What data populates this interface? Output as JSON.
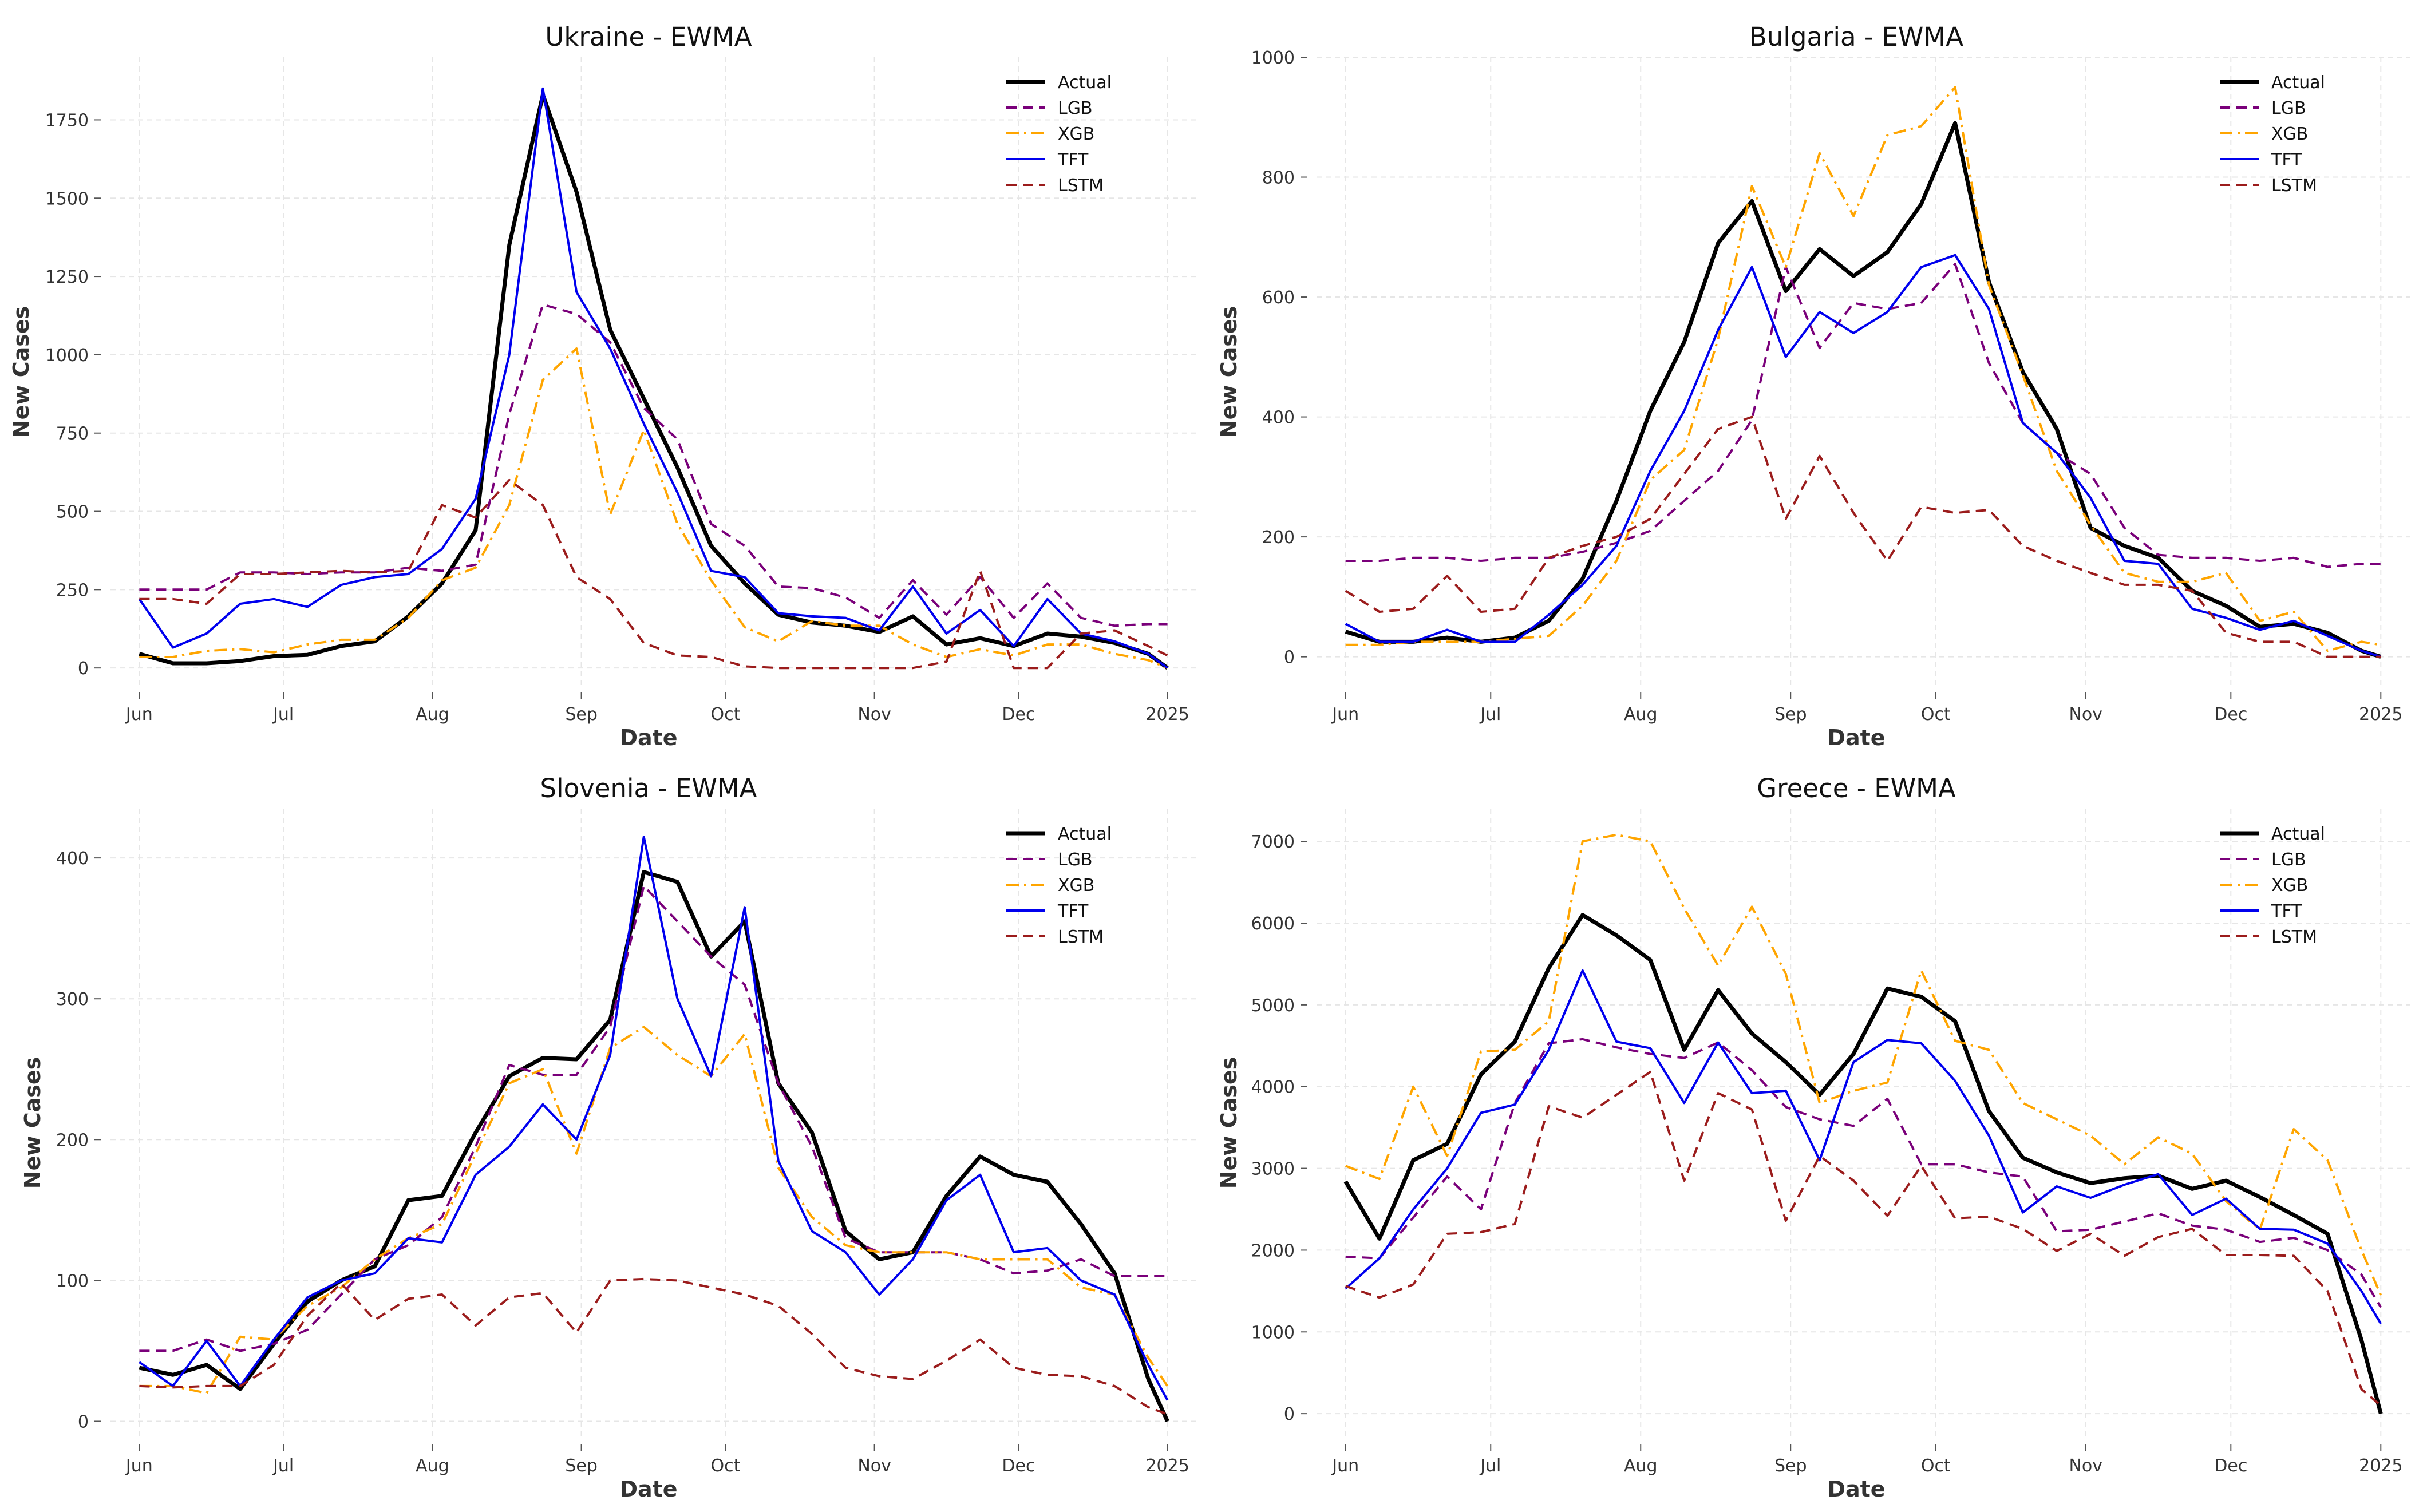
{
  "chart_data": [
    {
      "type": "line",
      "title": "Ukraine - EWMA",
      "xlabel": "Date",
      "ylabel": "New Cases",
      "ylim": [
        -60,
        1950
      ],
      "yticks": [
        0,
        250,
        500,
        750,
        1000,
        1250,
        1500,
        1750
      ],
      "x_tick_labels": [
        "Jun",
        "Jul",
        "Aug",
        "Sep",
        "Oct",
        "Nov",
        "Dec",
        "2025"
      ],
      "x_tick_days": [
        0,
        30,
        61,
        92,
        122,
        153,
        183,
        214
      ],
      "x_days": [
        0,
        7,
        14,
        21,
        28,
        35,
        42,
        49,
        56,
        63,
        70,
        77,
        84,
        91,
        98,
        105,
        112,
        119,
        126,
        133,
        140,
        147,
        154,
        161,
        168,
        175,
        182,
        189,
        196,
        203,
        210,
        214
      ],
      "grid": true,
      "legend_position": "top-right",
      "series": [
        {
          "name": "Actual",
          "color": "#000000",
          "dash": "solid",
          "values": [
            45,
            15,
            15,
            22,
            38,
            42,
            70,
            85,
            165,
            270,
            440,
            1350,
            1830,
            1520,
            1080,
            860,
            640,
            390,
            270,
            170,
            145,
            135,
            115,
            165,
            75,
            95,
            70,
            110,
            100,
            80,
            45,
            0
          ]
        },
        {
          "name": "LGB",
          "color": "#7a007a",
          "dash": "dashed",
          "values": [
            250,
            250,
            250,
            305,
            305,
            300,
            305,
            305,
            320,
            310,
            330,
            810,
            1160,
            1130,
            1040,
            830,
            730,
            460,
            390,
            260,
            255,
            225,
            160,
            280,
            170,
            290,
            160,
            270,
            160,
            135,
            140,
            140
          ]
        },
        {
          "name": "XGB",
          "color": "#ffa500",
          "dash": "dashdot",
          "values": [
            35,
            35,
            55,
            60,
            50,
            75,
            90,
            90,
            160,
            280,
            320,
            520,
            920,
            1020,
            490,
            760,
            460,
            280,
            130,
            85,
            150,
            135,
            135,
            75,
            35,
            60,
            40,
            75,
            75,
            45,
            25,
            0
          ]
        },
        {
          "name": "TFT",
          "color": "#0000ee",
          "dash": "solid",
          "values": [
            220,
            65,
            110,
            205,
            220,
            195,
            265,
            290,
            300,
            380,
            540,
            1000,
            1850,
            1200,
            1020,
            780,
            560,
            310,
            290,
            175,
            165,
            160,
            120,
            260,
            110,
            185,
            70,
            220,
            110,
            85,
            45,
            0
          ]
        },
        {
          "name": "LSTM",
          "color": "#9b1c1c",
          "dash": "dashed",
          "values": [
            220,
            220,
            205,
            300,
            300,
            305,
            310,
            305,
            310,
            520,
            480,
            600,
            520,
            290,
            220,
            80,
            40,
            35,
            5,
            0,
            0,
            0,
            0,
            0,
            20,
            310,
            0,
            0,
            110,
            120,
            70,
            40
          ]
        }
      ]
    },
    {
      "type": "line",
      "title": "Bulgaria - EWMA",
      "xlabel": "Date",
      "ylabel": "New Cases",
      "ylim": [
        -50,
        1000
      ],
      "yticks": [
        0,
        200,
        400,
        600,
        800,
        1000
      ],
      "x_tick_labels": [
        "Jun",
        "Jul",
        "Aug",
        "Sep",
        "Oct",
        "Nov",
        "Dec",
        "2025"
      ],
      "x_tick_days": [
        0,
        30,
        61,
        92,
        122,
        153,
        183,
        214
      ],
      "x_days": [
        0,
        7,
        14,
        21,
        28,
        35,
        42,
        49,
        56,
        63,
        70,
        77,
        84,
        91,
        98,
        105,
        112,
        119,
        126,
        133,
        140,
        147,
        154,
        161,
        168,
        175,
        182,
        189,
        196,
        203,
        210,
        214
      ],
      "grid": true,
      "legend_position": "top-right",
      "series": [
        {
          "name": "Actual",
          "color": "#000000",
          "dash": "solid",
          "values": [
            42,
            25,
            25,
            32,
            25,
            32,
            60,
            130,
            260,
            410,
            525,
            690,
            760,
            610,
            680,
            635,
            675,
            755,
            890,
            625,
            475,
            380,
            215,
            185,
            165,
            110,
            85,
            50,
            55,
            40,
            10,
            0
          ]
        },
        {
          "name": "LGB",
          "color": "#7a007a",
          "dash": "dashed",
          "values": [
            160,
            160,
            165,
            165,
            160,
            165,
            165,
            175,
            190,
            210,
            260,
            310,
            395,
            650,
            515,
            590,
            580,
            590,
            655,
            490,
            390,
            340,
            305,
            215,
            170,
            165,
            165,
            160,
            165,
            150,
            155,
            155
          ]
        },
        {
          "name": "XGB",
          "color": "#ffa500",
          "dash": "dashdot",
          "values": [
            20,
            20,
            25,
            25,
            25,
            30,
            35,
            85,
            160,
            295,
            345,
            530,
            785,
            650,
            840,
            735,
            870,
            885,
            950,
            620,
            470,
            310,
            220,
            140,
            125,
            125,
            140,
            60,
            75,
            10,
            25,
            20
          ]
        },
        {
          "name": "TFT",
          "color": "#0000ee",
          "dash": "solid",
          "values": [
            55,
            25,
            25,
            45,
            25,
            25,
            70,
            120,
            185,
            310,
            410,
            545,
            650,
            500,
            575,
            540,
            575,
            650,
            670,
            580,
            390,
            340,
            265,
            160,
            155,
            80,
            65,
            45,
            60,
            35,
            10,
            0
          ]
        },
        {
          "name": "LSTM",
          "color": "#9b1c1c",
          "dash": "dashed",
          "values": [
            110,
            75,
            80,
            135,
            75,
            80,
            165,
            185,
            200,
            230,
            305,
            380,
            400,
            230,
            335,
            240,
            160,
            250,
            240,
            245,
            185,
            160,
            140,
            120,
            120,
            110,
            40,
            25,
            25,
            0,
            0,
            0
          ]
        }
      ]
    },
    {
      "type": "line",
      "title": "Slovenia - EWMA",
      "xlabel": "Date",
      "ylabel": "New Cases",
      "ylim": [
        -12,
        435
      ],
      "yticks": [
        0,
        100,
        200,
        300,
        400
      ],
      "x_tick_labels": [
        "Jun",
        "Jul",
        "Aug",
        "Sep",
        "Oct",
        "Nov",
        "Dec",
        "2025"
      ],
      "x_tick_days": [
        0,
        30,
        61,
        92,
        122,
        153,
        183,
        214
      ],
      "x_days": [
        0,
        7,
        14,
        21,
        28,
        35,
        42,
        49,
        56,
        63,
        70,
        77,
        84,
        91,
        98,
        105,
        112,
        119,
        126,
        133,
        140,
        147,
        154,
        161,
        168,
        175,
        182,
        189,
        196,
        203,
        210,
        214
      ],
      "grid": true,
      "legend_position": "top-right",
      "series": [
        {
          "name": "Actual",
          "color": "#000000",
          "dash": "solid",
          "values": [
            38,
            33,
            40,
            23,
            55,
            85,
            100,
            110,
            157,
            160,
            205,
            245,
            258,
            257,
            285,
            390,
            383,
            330,
            355,
            240,
            205,
            135,
            115,
            120,
            160,
            188,
            175,
            170,
            140,
            105,
            30,
            0
          ]
        },
        {
          "name": "LGB",
          "color": "#7a007a",
          "dash": "dashed",
          "values": [
            50,
            50,
            58,
            50,
            55,
            65,
            90,
            115,
            125,
            145,
            195,
            253,
            246,
            246,
            280,
            380,
            355,
            330,
            310,
            240,
            195,
            130,
            120,
            120,
            120,
            115,
            105,
            107,
            115,
            103,
            103,
            103
          ]
        },
        {
          "name": "XGB",
          "color": "#ffa500",
          "dash": "dashdot",
          "values": [
            25,
            25,
            20,
            60,
            58,
            82,
            95,
            115,
            130,
            140,
            190,
            240,
            250,
            190,
            265,
            280,
            260,
            245,
            275,
            180,
            145,
            125,
            120,
            120,
            120,
            115,
            115,
            115,
            95,
            90,
            45,
            25
          ]
        },
        {
          "name": "TFT",
          "color": "#0000ee",
          "dash": "solid",
          "values": [
            42,
            25,
            57,
            25,
            58,
            88,
            100,
            105,
            130,
            127,
            175,
            195,
            225,
            200,
            260,
            415,
            300,
            245,
            365,
            185,
            135,
            120,
            90,
            115,
            157,
            175,
            120,
            123,
            100,
            90,
            40,
            15
          ]
        },
        {
          "name": "LSTM",
          "color": "#9b1c1c",
          "dash": "dashed",
          "values": [
            25,
            24,
            25,
            25,
            40,
            75,
            98,
            72,
            87,
            90,
            68,
            88,
            91,
            63,
            100,
            101,
            100,
            95,
            90,
            82,
            62,
            38,
            32,
            30,
            43,
            58,
            38,
            33,
            32,
            25,
            10,
            5
          ]
        }
      ]
    },
    {
      "type": "line",
      "title": "Greece - EWMA",
      "xlabel": "Date",
      "ylabel": "New Cases",
      "ylim": [
        -300,
        7400
      ],
      "yticks": [
        0,
        1000,
        2000,
        3000,
        4000,
        5000,
        6000,
        7000
      ],
      "x_tick_labels": [
        "Jun",
        "Jul",
        "Aug",
        "Sep",
        "Oct",
        "Nov",
        "Dec",
        "2025"
      ],
      "x_tick_days": [
        0,
        30,
        61,
        92,
        122,
        153,
        183,
        214
      ],
      "x_days": [
        0,
        7,
        14,
        21,
        28,
        35,
        42,
        49,
        56,
        63,
        70,
        77,
        84,
        91,
        98,
        105,
        112,
        119,
        126,
        133,
        140,
        147,
        154,
        161,
        168,
        175,
        182,
        189,
        196,
        203,
        210,
        214
      ],
      "grid": true,
      "legend_position": "top-right",
      "series": [
        {
          "name": "Actual",
          "color": "#000000",
          "dash": "solid",
          "values": [
            2840,
            2140,
            3100,
            3300,
            4150,
            4550,
            5450,
            6100,
            5850,
            5550,
            4450,
            5180,
            4650,
            4300,
            3900,
            4400,
            5200,
            5100,
            4800,
            3700,
            3130,
            2950,
            2820,
            2880,
            2910,
            2750,
            2850,
            2650,
            2430,
            2200,
            900,
            0
          ]
        },
        {
          "name": "LGB",
          "color": "#7a007a",
          "dash": "dashed",
          "values": [
            1920,
            1900,
            2400,
            2900,
            2500,
            3800,
            4530,
            4580,
            4480,
            4400,
            4350,
            4540,
            4200,
            3750,
            3600,
            3520,
            3850,
            3050,
            3050,
            2950,
            2900,
            2230,
            2250,
            2350,
            2450,
            2300,
            2250,
            2100,
            2150,
            2000,
            1700,
            1300
          ]
        },
        {
          "name": "XGB",
          "color": "#ffa500",
          "dash": "dashdot",
          "values": [
            3030,
            2870,
            4000,
            3150,
            4430,
            4450,
            4800,
            7000,
            7080,
            7000,
            6180,
            5480,
            6200,
            5380,
            3800,
            3950,
            4050,
            5420,
            4560,
            4450,
            3800,
            3600,
            3400,
            3050,
            3380,
            3180,
            2600,
            2250,
            3480,
            3100,
            2000,
            1450
          ]
        },
        {
          "name": "TFT",
          "color": "#0000ee",
          "dash": "solid",
          "values": [
            1530,
            1900,
            2500,
            3000,
            3680,
            3780,
            4450,
            5420,
            4550,
            4470,
            3800,
            4540,
            3920,
            3950,
            3100,
            4300,
            4570,
            4530,
            4070,
            3400,
            2460,
            2780,
            2640,
            2800,
            2930,
            2430,
            2630,
            2260,
            2250,
            2080,
            1500,
            1100
          ]
        },
        {
          "name": "LSTM",
          "color": "#9b1c1c",
          "dash": "dashed",
          "values": [
            1560,
            1420,
            1580,
            2200,
            2220,
            2320,
            3760,
            3620,
            3900,
            4180,
            2850,
            3920,
            3720,
            2360,
            3150,
            2850,
            2420,
            3030,
            2390,
            2410,
            2260,
            1990,
            2200,
            1930,
            2160,
            2260,
            1940,
            1940,
            1930,
            1500,
            300,
            100
          ]
        }
      ]
    }
  ]
}
